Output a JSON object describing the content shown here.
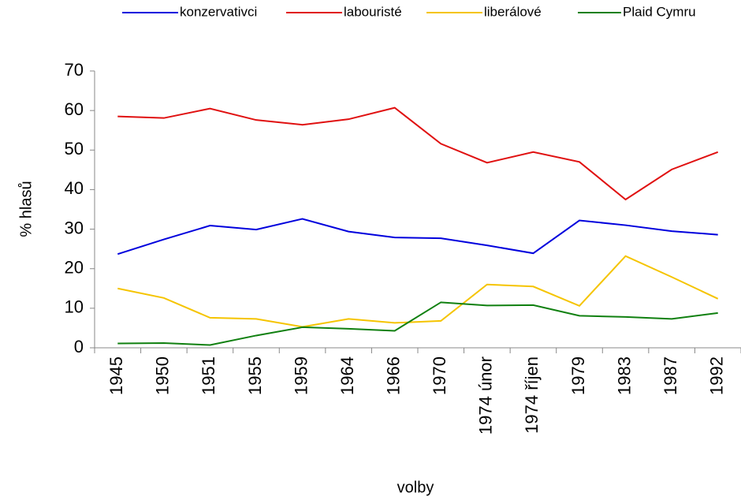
{
  "chart_data": {
    "type": "line",
    "x_label": "volby",
    "y_label": "% hlasů",
    "categories": [
      "1945",
      "1950",
      "1951",
      "1955",
      "1959",
      "1964",
      "1966",
      "1970",
      "1974 únor",
      "1974 říjen",
      "1979",
      "1983",
      "1987",
      "1992"
    ],
    "series": [
      {
        "name": "konzervativci",
        "color": "#0000dd",
        "values": [
          23.7,
          27.4,
          30.9,
          29.9,
          32.6,
          29.4,
          27.9,
          27.7,
          25.9,
          23.9,
          32.2,
          31.0,
          29.5,
          28.6
        ]
      },
      {
        "name": "labouristé",
        "color": "#e01010",
        "values": [
          58.5,
          58.1,
          60.5,
          57.6,
          56.4,
          57.8,
          60.7,
          51.6,
          46.8,
          49.5,
          47.0,
          37.5,
          45.1,
          49.5
        ]
      },
      {
        "name": "liberálové",
        "color": "#f5c400",
        "values": [
          15.0,
          12.6,
          7.6,
          7.3,
          5.3,
          7.3,
          6.3,
          6.8,
          16.0,
          15.5,
          10.6,
          23.2,
          17.9,
          12.4
        ]
      },
      {
        "name": "Plaid Cymru",
        "color": "#108010",
        "values": [
          1.1,
          1.2,
          0.7,
          3.1,
          5.2,
          4.8,
          4.3,
          11.5,
          10.7,
          10.8,
          8.1,
          7.8,
          7.3,
          8.8
        ]
      }
    ],
    "ylim": [
      0,
      70
    ],
    "yticks": [
      0,
      10,
      20,
      30,
      40,
      50,
      60,
      70
    ],
    "grid": false,
    "legend": "top"
  }
}
